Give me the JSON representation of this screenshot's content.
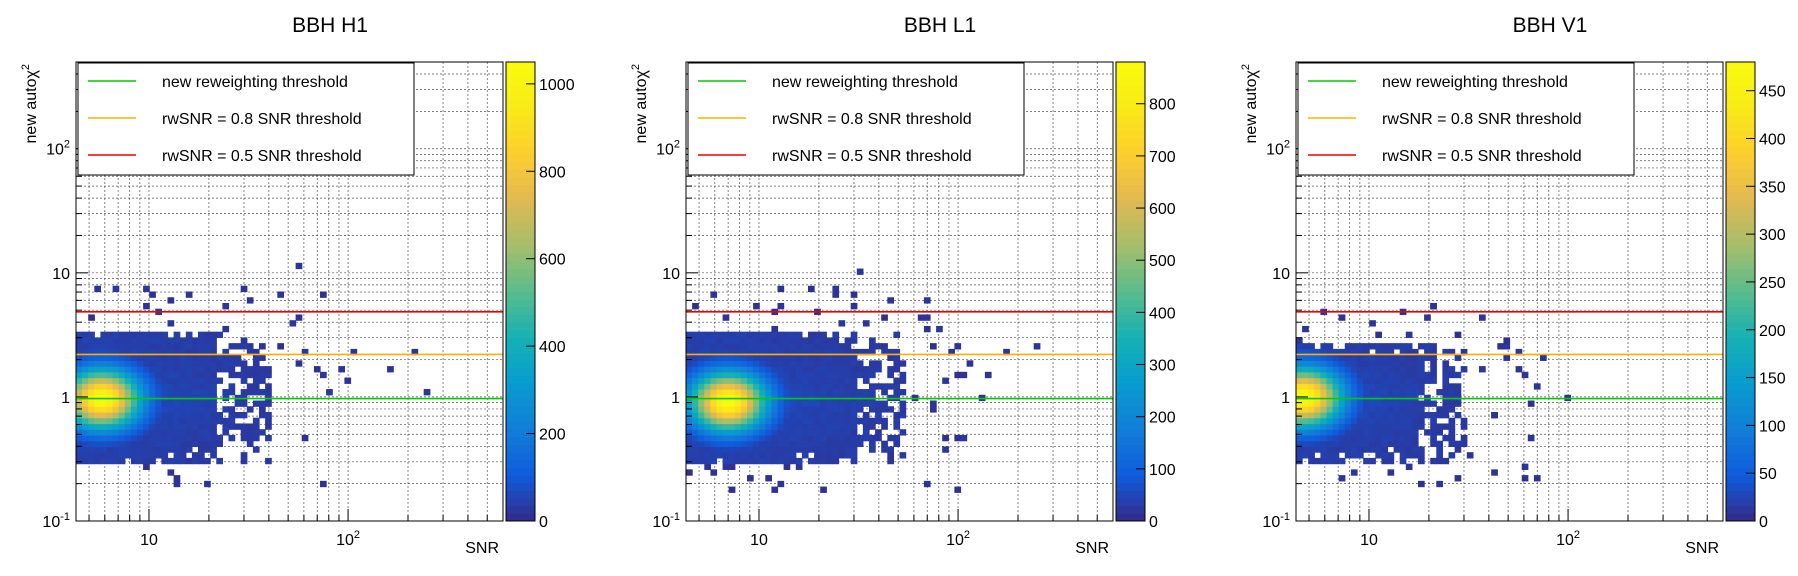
{
  "chart_data": [
    {
      "type": "heatmap",
      "title": "BBH H1",
      "xlabel": "SNR",
      "ylabel": "new autoχ²",
      "x_scale": "log",
      "y_scale": "log",
      "xlim": [
        4.3,
        600
      ],
      "ylim": [
        0.1,
        500
      ],
      "x_tick_labels": [
        "10",
        "10²"
      ],
      "y_tick_labels": [
        "10⁻¹",
        "1",
        "10",
        "10²"
      ],
      "grid": true,
      "legend_position": "top-left",
      "thresholds": [
        {
          "name": "new reweighting threshold",
          "y": 0.97,
          "color": "#00cc00"
        },
        {
          "name": "rwSNR = 0.8 SNR threshold",
          "y": 2.2,
          "color": "#ffb000"
        },
        {
          "name": "rwSNR = 0.5 SNR threshold",
          "y": 4.85,
          "color": "#ee0000"
        }
      ],
      "colorbar": {
        "min": 0,
        "max": 1050,
        "ticks": [
          0,
          200,
          400,
          600,
          800,
          1000
        ]
      },
      "peak": {
        "snr": 5.8,
        "chi2": 0.97,
        "count": 1050
      },
      "core_extent": {
        "snr_max": 40,
        "chi2_min": 0.3,
        "chi2_max": 3.4
      },
      "outliers": [
        [
          58,
          11.5
        ],
        [
          62,
          2.2
        ],
        [
          90,
          1.6
        ],
        [
          100,
          1.3
        ],
        [
          110,
          2.4
        ],
        [
          160,
          1.7
        ],
        [
          210,
          2.3
        ],
        [
          250,
          1.1
        ],
        [
          33,
          6.3
        ]
      ]
    },
    {
      "type": "heatmap",
      "title": "BBH L1",
      "xlabel": "SNR",
      "ylabel": "new autoχ²",
      "x_scale": "log",
      "y_scale": "log",
      "xlim": [
        4.3,
        600
      ],
      "ylim": [
        0.1,
        500
      ],
      "x_tick_labels": [
        "10",
        "10²"
      ],
      "y_tick_labels": [
        "10⁻¹",
        "1",
        "10",
        "10²"
      ],
      "grid": true,
      "legend_position": "top-left",
      "thresholds": [
        {
          "name": "new reweighting threshold",
          "y": 0.97,
          "color": "#00cc00"
        },
        {
          "name": "rwSNR = 0.8 SNR threshold",
          "y": 2.2,
          "color": "#ffb000"
        },
        {
          "name": "rwSNR = 0.5 SNR threshold",
          "y": 4.85,
          "color": "#ee0000"
        }
      ],
      "colorbar": {
        "min": 0,
        "max": 880,
        "ticks": [
          0,
          100,
          200,
          300,
          400,
          500,
          600,
          700,
          800
        ]
      },
      "peak": {
        "snr": 7.0,
        "chi2": 0.92,
        "count": 880
      },
      "core_extent": {
        "snr_max": 55,
        "chi2_min": 0.28,
        "chi2_max": 3.4
      },
      "outliers": [
        [
          32,
          9.8
        ],
        [
          25,
          7.0
        ],
        [
          45,
          6.3
        ],
        [
          95,
          2.4
        ],
        [
          115,
          1.8
        ],
        [
          130,
          1.0
        ],
        [
          175,
          2.2
        ],
        [
          250,
          2.6
        ],
        [
          140,
          1.5
        ],
        [
          45,
          0.33
        ]
      ]
    },
    {
      "type": "heatmap",
      "title": "BBH V1",
      "xlabel": "SNR",
      "ylabel": "new autoχ²",
      "x_scale": "log",
      "y_scale": "log",
      "xlim": [
        4.3,
        600
      ],
      "ylim": [
        0.1,
        500
      ],
      "x_tick_labels": [
        "10",
        "10²"
      ],
      "y_tick_labels": [
        "10⁻¹",
        "1",
        "10",
        "10²"
      ],
      "grid": true,
      "legend_position": "top-left",
      "thresholds": [
        {
          "name": "new reweighting threshold",
          "y": 0.97,
          "color": "#00cc00"
        },
        {
          "name": "rwSNR = 0.8 SNR threshold",
          "y": 2.2,
          "color": "#ffb000"
        },
        {
          "name": "rwSNR = 0.5 SNR threshold",
          "y": 4.85,
          "color": "#ee0000"
        }
      ],
      "colorbar": {
        "min": 0,
        "max": 480,
        "ticks": [
          0,
          50,
          100,
          150,
          200,
          250,
          300,
          350,
          400,
          450
        ]
      },
      "peak": {
        "snr": 4.7,
        "chi2": 1.0,
        "count": 480
      },
      "core_extent": {
        "snr_max": 32,
        "chi2_min": 0.3,
        "chi2_max": 2.6
      },
      "outliers": [
        [
          21,
          5.2
        ],
        [
          15,
          4.9
        ],
        [
          55,
          1.6
        ],
        [
          68,
          1.2
        ],
        [
          100,
          1.0
        ],
        [
          75,
          2.1
        ],
        [
          48,
          2.0
        ],
        [
          42,
          0.7
        ]
      ]
    }
  ]
}
